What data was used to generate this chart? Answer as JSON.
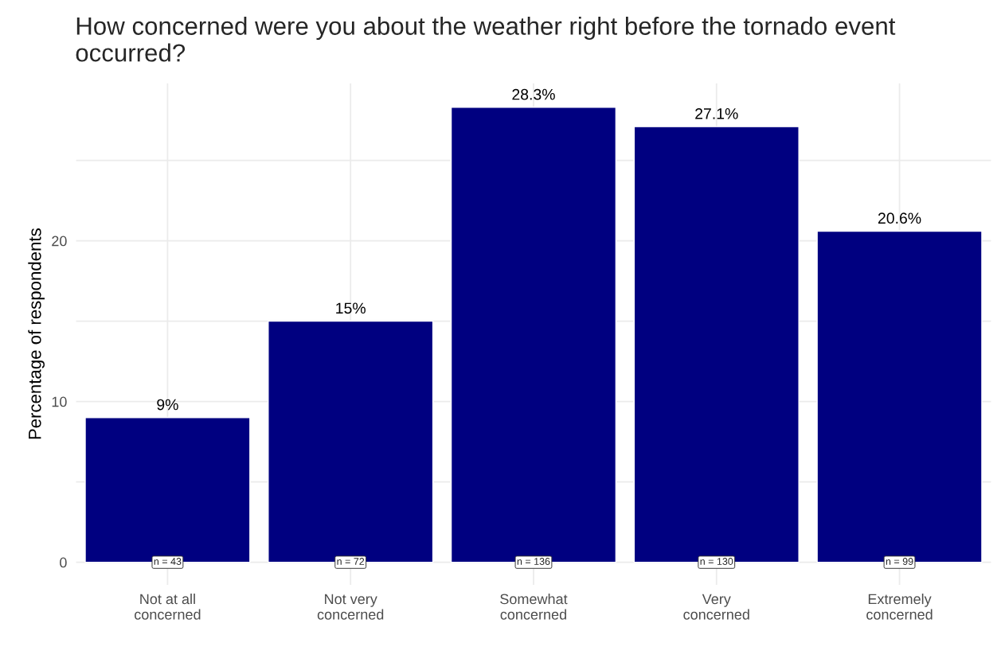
{
  "chart_data": {
    "type": "bar",
    "title": "How concerned were you about the weather right before the tornado event occurred?",
    "ylabel": "Percentage of respondents",
    "categories": [
      "Not at all\nconcerned",
      "Not very\nconcerned",
      "Somewhat\nconcerned",
      "Very\nconcerned",
      "Extremely\nconcerned"
    ],
    "values": [
      9,
      15,
      28.3,
      27.1,
      20.6
    ],
    "value_labels": [
      "9%",
      "15%",
      "28.3%",
      "27.1%",
      "20.6%"
    ],
    "color": "#000080",
    "ylim": [
      -1.4,
      29.8
    ],
    "yticks": [
      0,
      {
        "value": 5,
        "label": null
      },
      10,
      {
        "value": 15,
        "label": null
      },
      20,
      {
        "value": 25,
        "label": null
      }
    ],
    "grid": true,
    "annotations": [
      {
        "text": "n = 43",
        "x": "Not at all\nconcerned",
        "y": 0
      },
      {
        "text": "n = 72",
        "x": "Not very\nconcerned",
        "y": 0
      },
      {
        "text": "n = 136",
        "x": "Somewhat\nconcerned",
        "y": 0
      },
      {
        "text": "n = 130",
        "x": "Very\nconcerned",
        "y": 0
      },
      {
        "text": "n = 99",
        "x": "Extremely\nconcerned",
        "y": 0
      }
    ]
  }
}
